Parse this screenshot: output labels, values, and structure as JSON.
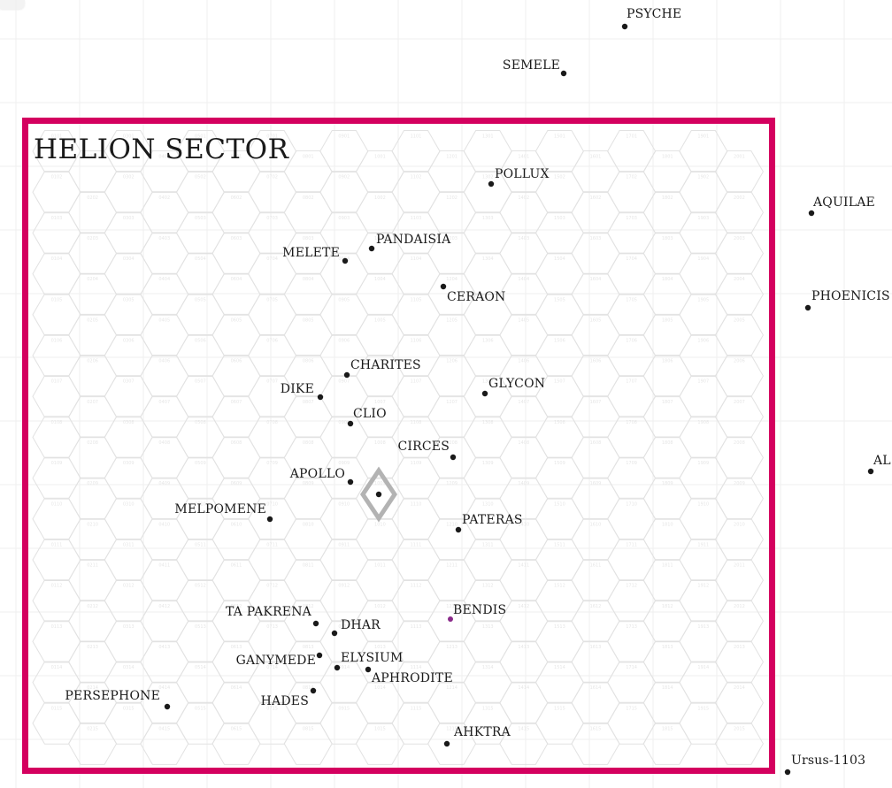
{
  "map": {
    "title": "HELION SECTOR",
    "colors": {
      "background": "#ffffff",
      "sector_border": "#d4005f",
      "hex_grid": "#e2e2e2",
      "square_grid": "#efefef",
      "system_dot": "#1a1a1a",
      "highlight_dot": "#8a2a8a",
      "marker": "#b3b3b3"
    },
    "marker": {
      "name": "current-location-marker",
      "shape": "diamond"
    },
    "inner_systems": [
      {
        "name": "POLLUX"
      },
      {
        "name": "PANDAISIA"
      },
      {
        "name": "MELETE"
      },
      {
        "name": "CERAON"
      },
      {
        "name": "CHARITES"
      },
      {
        "name": "DIKE"
      },
      {
        "name": "GLYCON"
      },
      {
        "name": "CLIO"
      },
      {
        "name": "CIRCES"
      },
      {
        "name": "APOLLO"
      },
      {
        "name": "MELPOMENE"
      },
      {
        "name": "PATERAS"
      },
      {
        "name": "TA PAKRENA"
      },
      {
        "name": "DHAR"
      },
      {
        "name": "BENDIS",
        "highlight": true
      },
      {
        "name": "GANYMEDE"
      },
      {
        "name": "ELYSIUM"
      },
      {
        "name": "APHRODITE"
      },
      {
        "name": "PERSEPHONE"
      },
      {
        "name": "HADES"
      },
      {
        "name": "AHKTRA"
      }
    ],
    "outer_systems": [
      {
        "name": "PSYCHE"
      },
      {
        "name": "SEMELE"
      },
      {
        "name": "AQUILAE"
      },
      {
        "name": "PHOENICIS"
      },
      {
        "name": "AL"
      },
      {
        "name": "Ursus-1103"
      }
    ]
  }
}
